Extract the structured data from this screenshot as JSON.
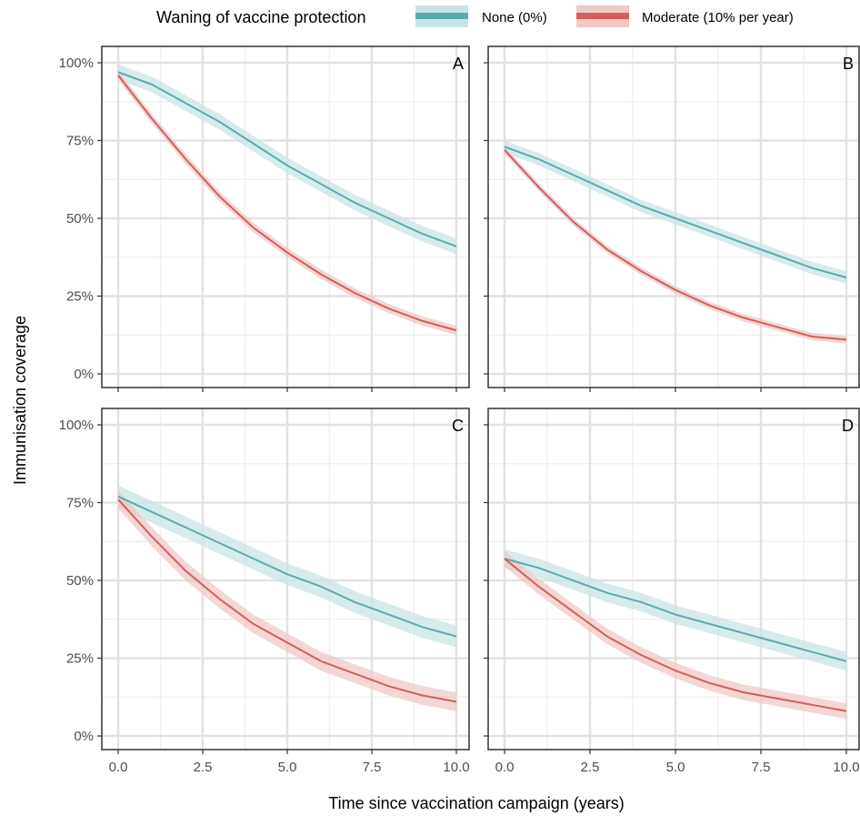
{
  "chart_data": {
    "type": "line",
    "legend": {
      "title": "Waning of vaccine protection",
      "placement": "top",
      "entries": [
        {
          "label": "None (0%)",
          "color": "#5aacb0",
          "band_color": "#c9e4e5"
        },
        {
          "label": "Moderate (10% per year)",
          "color": "#d0605c",
          "band_color": "#f0c8c6"
        }
      ]
    },
    "xlabel": "Time since vaccination campaign (years)",
    "ylabel": "Immunisation coverage",
    "xlim": [
      0,
      10
    ],
    "ylim": [
      0,
      1
    ],
    "x_ticks": [
      0,
      2.5,
      5,
      7.5,
      10
    ],
    "x_tick_labels": [
      "0.0",
      "2.5",
      "5.0",
      "7.5",
      "10.0"
    ],
    "y_ticks": [
      0,
      0.25,
      0.5,
      0.75,
      1
    ],
    "y_tick_labels": [
      "0%",
      "25%",
      "50%",
      "75%",
      "100%"
    ],
    "grid": true,
    "x": [
      0,
      1,
      2,
      3,
      4,
      5,
      6,
      7,
      8,
      9,
      10
    ],
    "panels": [
      {
        "tag": "A",
        "series": [
          {
            "name": "None (0%)",
            "values": [
              0.97,
              0.93,
              0.87,
              0.81,
              0.74,
              0.67,
              0.61,
              0.55,
              0.5,
              0.45,
              0.41
            ],
            "band_halfwidth": 0.025
          },
          {
            "name": "Moderate (10% per year)",
            "values": [
              0.96,
              0.82,
              0.69,
              0.57,
              0.47,
              0.39,
              0.32,
              0.26,
              0.21,
              0.17,
              0.14
            ],
            "band_halfwidth": 0.015
          }
        ]
      },
      {
        "tag": "B",
        "series": [
          {
            "name": "None (0%)",
            "values": [
              0.73,
              0.69,
              0.64,
              0.59,
              0.54,
              0.5,
              0.46,
              0.42,
              0.38,
              0.34,
              0.31
            ],
            "band_halfwidth": 0.02
          },
          {
            "name": "Moderate (10% per year)",
            "values": [
              0.72,
              0.6,
              0.49,
              0.4,
              0.33,
              0.27,
              0.22,
              0.18,
              0.15,
              0.12,
              0.11
            ],
            "band_halfwidth": 0.012
          }
        ]
      },
      {
        "tag": "C",
        "series": [
          {
            "name": "None (0%)",
            "values": [
              0.77,
              0.72,
              0.67,
              0.62,
              0.57,
              0.52,
              0.48,
              0.43,
              0.39,
              0.35,
              0.32
            ],
            "band_halfwidth": 0.035
          },
          {
            "name": "Moderate (10% per year)",
            "values": [
              0.76,
              0.64,
              0.53,
              0.44,
              0.36,
              0.3,
              0.24,
              0.2,
              0.16,
              0.13,
              0.11
            ],
            "band_halfwidth": 0.03
          }
        ]
      },
      {
        "tag": "D",
        "series": [
          {
            "name": "None (0%)",
            "values": [
              0.57,
              0.54,
              0.5,
              0.46,
              0.43,
              0.39,
              0.36,
              0.33,
              0.3,
              0.27,
              0.24
            ],
            "band_halfwidth": 0.03
          },
          {
            "name": "Moderate (10% per year)",
            "values": [
              0.57,
              0.48,
              0.4,
              0.32,
              0.26,
              0.21,
              0.17,
              0.14,
              0.12,
              0.1,
              0.08
            ],
            "band_halfwidth": 0.025
          }
        ]
      }
    ]
  }
}
